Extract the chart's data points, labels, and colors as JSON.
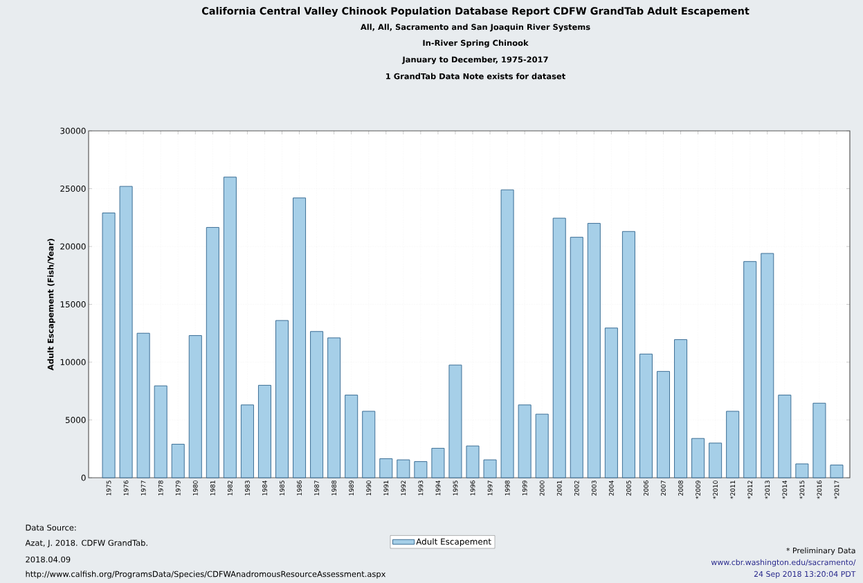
{
  "chart_data": {
    "type": "bar",
    "title": "California Central Valley Chinook Population Database Report CDFW GrandTab Adult Escapement",
    "subtitle": "All, All, Sacramento and San Joaquin River Systems",
    "ylabel": "Adult Escapement (Fish/Year)",
    "categories": [
      "1975",
      "1976",
      "1977",
      "1978",
      "1979",
      "1980",
      "1981",
      "1982",
      "1983",
      "1984",
      "1985",
      "1986",
      "1987",
      "1988",
      "1989",
      "1990",
      "1991",
      "1992",
      "1993",
      "1994",
      "1995",
      "1996",
      "1997",
      "1998",
      "1999",
      "2000",
      "2001",
      "2002",
      "2003",
      "2004",
      "2005",
      "2006",
      "2007",
      "2008",
      "*2009",
      "*2010",
      "*2011",
      "*2012",
      "*2013",
      "*2014",
      "*2015",
      "*2016",
      "*2017"
    ],
    "series": [
      {
        "name": "Adult Escapement",
        "color": "#a6cfe8",
        "values": [
          22900,
          25200,
          12500,
          7950,
          2900,
          12300,
          21650,
          26000,
          6300,
          8000,
          13600,
          24200,
          12650,
          12100,
          7150,
          5750,
          1650,
          1550,
          1400,
          2550,
          9750,
          2750,
          1550,
          24900,
          6300,
          5500,
          22450,
          20800,
          22000,
          12950,
          21300,
          10700,
          9200,
          11950,
          3400,
          3000,
          5750,
          18700,
          19400,
          7150,
          1200,
          6450,
          1100
        ]
      }
    ],
    "ylim": [
      0,
      30000
    ],
    "yticks": [
      0,
      5000,
      10000,
      15000,
      20000,
      25000,
      30000
    ],
    "grid": true,
    "legend": "bottom",
    "annotations": [
      "In-River Spring Chinook",
      "January to December, 1975-2017",
      "1 GrandTab Data Note exists for dataset",
      "Data Source:",
      "Azat, J. 2018. CDFW GrandTab.",
      "2018.04.09",
      "http://www.calfish.org/ProgramsData/Species/CDFWAnadromousResourceAssessment.aspx",
      "* Preliminary Data",
      "www.cbr.washington.edu/sacramento/",
      "24 Sep 2018 13:20:04 PDT"
    ]
  }
}
